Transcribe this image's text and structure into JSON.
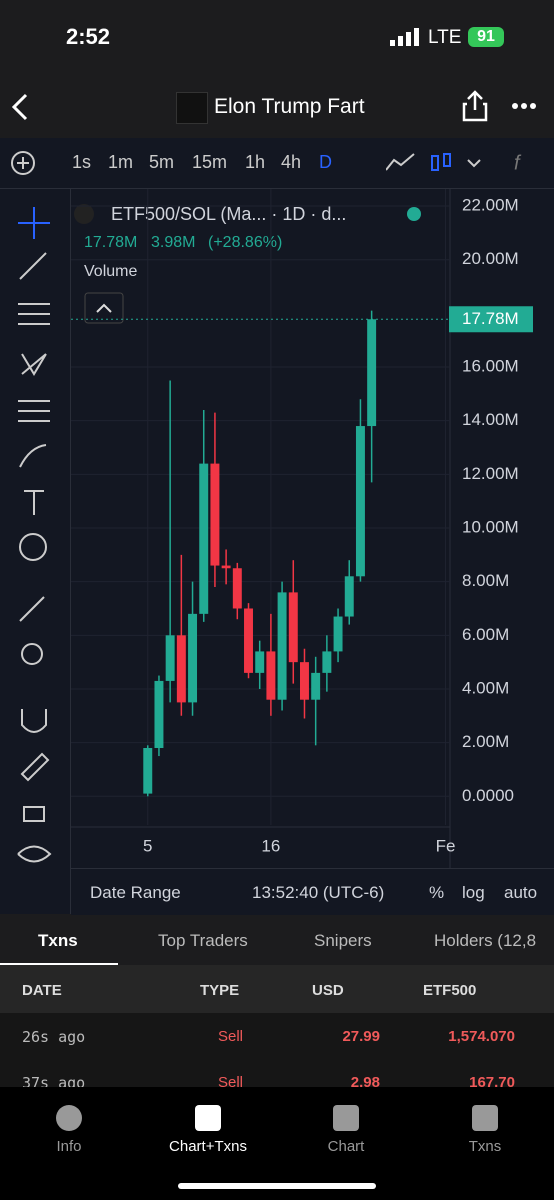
{
  "status": {
    "time": "2:52",
    "network": "LTE",
    "battery": "91"
  },
  "header": {
    "title": "Elon Trump Fart"
  },
  "timeframes": [
    "1s",
    "1m",
    "5m",
    "15m",
    "1h",
    "4h",
    "D"
  ],
  "chart": {
    "type": "candlestick",
    "legend": "ETF500/SOL (Ma... · 1D · d...",
    "last": "17.78M",
    "change": "3.98M",
    "change_pct": "(+28.86%)",
    "volume_label": "Volume",
    "last_price": {
      "value": 17780000,
      "label": "17.78M"
    },
    "ylim": [
      -1070000,
      22300000
    ],
    "yticks": [
      {
        "value": 0,
        "label": "0.0000"
      },
      {
        "value": 2000000,
        "label": "2.00M"
      },
      {
        "value": 4000000,
        "label": "4.00M"
      },
      {
        "value": 6000000,
        "label": "6.00M"
      },
      {
        "value": 8000000,
        "label": "8.00M"
      },
      {
        "value": 10000000,
        "label": "10.00M"
      },
      {
        "value": 12000000,
        "label": "12.00M"
      },
      {
        "value": 14000000,
        "label": "14.00M"
      },
      {
        "value": 16000000,
        "label": "16.00M"
      },
      {
        "value": 20000000,
        "label": "20.00M"
      },
      {
        "value": 22000000,
        "label": "22.00M"
      }
    ],
    "xlim": [
      -1.5,
      32
    ],
    "xticks": [
      5,
      16,
      {
        "value": 31.6,
        "label": "Fe"
      }
    ],
    "up_color": "#22ab94",
    "down_color": "#f23645",
    "x": [
      5,
      6,
      7,
      8,
      9,
      10,
      11,
      12,
      13,
      14,
      15,
      16,
      17,
      18,
      19,
      20,
      21,
      22,
      23,
      24,
      25
    ],
    "open": [
      100000,
      1800000,
      4300000,
      6000000,
      3500000,
      6800000,
      12400000,
      8600000,
      8500000,
      7000000,
      4600000,
      5400000,
      3600000,
      7600000,
      5000000,
      3600000,
      4600000,
      5400000,
      6700000,
      8200000,
      13800000
    ],
    "close": [
      1800000,
      4300000,
      6000000,
      3500000,
      6800000,
      12400000,
      8600000,
      8500000,
      7000000,
      4600000,
      5400000,
      3600000,
      7600000,
      5000000,
      3600000,
      4600000,
      5400000,
      6700000,
      8200000,
      13800000,
      17780000
    ],
    "high": [
      1900000,
      4500000,
      15500000,
      9000000,
      8000000,
      14400000,
      14300000,
      9200000,
      8700000,
      7200000,
      5800000,
      6800000,
      8000000,
      8800000,
      5500000,
      5200000,
      6000000,
      7000000,
      8800000,
      14800000,
      18100000
    ],
    "low": [
      0,
      1500000,
      3500000,
      3000000,
      3000000,
      6500000,
      7800000,
      7900000,
      6600000,
      4400000,
      4000000,
      3000000,
      3200000,
      4200000,
      2900000,
      1900000,
      3900000,
      5000000,
      6400000,
      8000000,
      11700000
    ]
  },
  "toolbar": {
    "date_range": "Date Range",
    "time": "13:52:40 (UTC-6)",
    "percent": "%",
    "log": "log",
    "auto": "auto"
  },
  "tabs": [
    "Txns",
    "Top Traders",
    "Snipers",
    "Holders (12,8"
  ],
  "table": {
    "columns": [
      "DATE",
      "TYPE",
      "USD",
      "ETF500"
    ],
    "rows": [
      [
        "26s ago",
        "Sell",
        "27.99",
        "1,574.070"
      ],
      [
        "37s ago",
        "Sell",
        "2.98",
        "167.70"
      ]
    ]
  },
  "nav": [
    "Info",
    "Chart+Txns",
    "Chart",
    "Txns"
  ]
}
